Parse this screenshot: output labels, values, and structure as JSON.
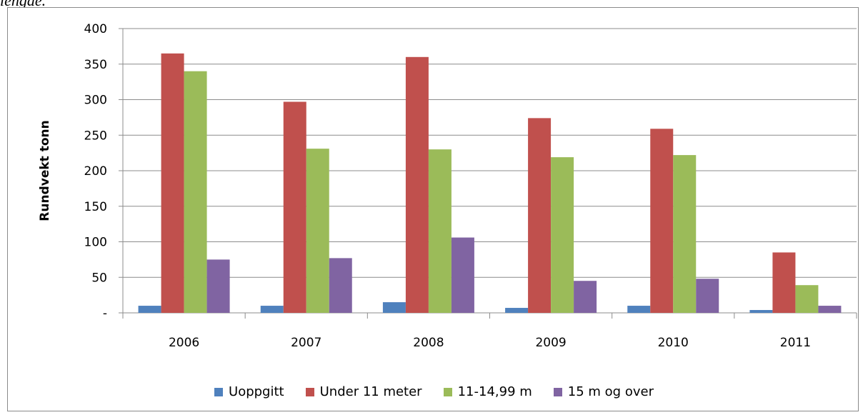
{
  "page": {
    "caption_fragment": "lengde."
  },
  "chart_data": {
    "type": "bar",
    "title": "",
    "xlabel": "",
    "ylabel": "Rundvekt tonn",
    "categories": [
      "2006",
      "2007",
      "2008",
      "2009",
      "2010",
      "2011"
    ],
    "ylim": [
      0,
      400
    ],
    "yticks": [
      0,
      50,
      100,
      150,
      200,
      250,
      300,
      350,
      400
    ],
    "ytick_labels": [
      "-",
      "50",
      "100",
      "150",
      "200",
      "250",
      "300",
      "350",
      "400"
    ],
    "grid": true,
    "legend_position": "bottom",
    "series": [
      {
        "name": "Uoppgitt",
        "color": "#4f81bd",
        "values": [
          10,
          10,
          15,
          7,
          10,
          4
        ]
      },
      {
        "name": "Under 11 meter",
        "color": "#c0504d",
        "values": [
          365,
          297,
          360,
          274,
          259,
          85
        ]
      },
      {
        "name": "11-14,99 m",
        "color": "#9bbb59",
        "values": [
          340,
          231,
          230,
          219,
          222,
          39
        ]
      },
      {
        "name": "15 m og over",
        "color": "#8064a2",
        "values": [
          75,
          77,
          106,
          45,
          48,
          10
        ]
      }
    ]
  }
}
